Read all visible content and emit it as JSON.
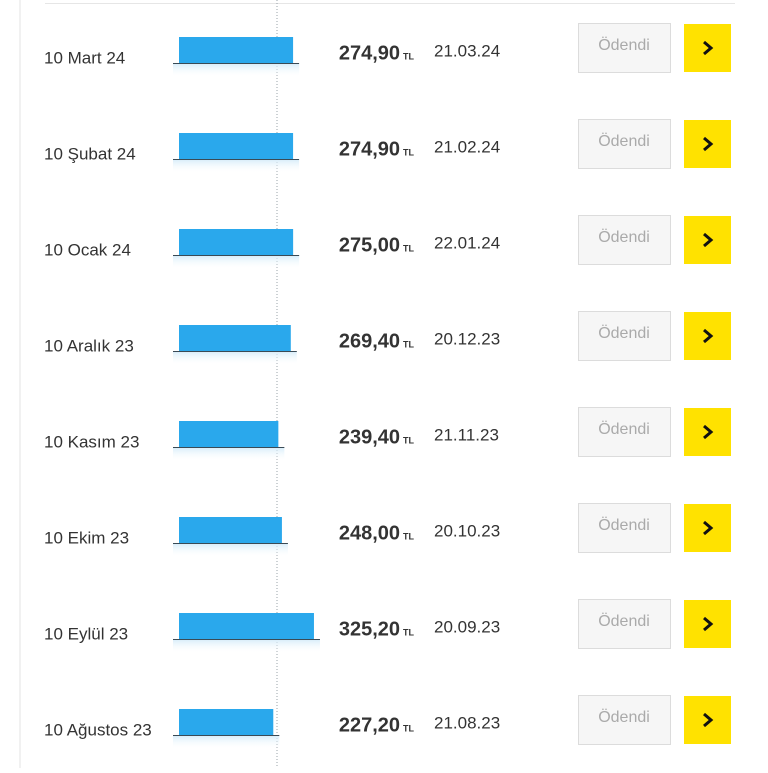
{
  "rows": [
    {
      "label": "10 Mart 24",
      "amount": {
        "value": 274.9,
        "label": "274,90"
      },
      "currency": "TL",
      "date": "21.03.24",
      "status": "Ödendi"
    },
    {
      "label": "10 Şubat 24",
      "amount": {
        "value": 274.9,
        "label": "274,90"
      },
      "currency": "TL",
      "date": "21.02.24",
      "status": "Ödendi"
    },
    {
      "label": "10 Ocak 24",
      "amount": {
        "value": 275.0,
        "label": "275,00"
      },
      "currency": "TL",
      "date": "22.01.24",
      "status": "Ödendi"
    },
    {
      "label": "10 Aralık 23",
      "amount": {
        "value": 269.4,
        "label": "269,40"
      },
      "currency": "TL",
      "date": "20.12.23",
      "status": "Ödendi"
    },
    {
      "label": "10 Kasım 23",
      "amount": {
        "value": 239.4,
        "label": "239,40"
      },
      "currency": "TL",
      "date": "21.11.23",
      "status": "Ödendi"
    },
    {
      "label": "10 Ekim 23",
      "amount": {
        "value": 248.0,
        "label": "248,00"
      },
      "currency": "TL",
      "date": "20.10.23",
      "status": "Ödendi"
    },
    {
      "label": "10 Eylül 23",
      "amount": {
        "value": 325.2,
        "label": "325,20"
      },
      "currency": "TL",
      "date": "20.09.23",
      "status": "Ödendi"
    },
    {
      "label": "10 Ağustos 23",
      "amount": {
        "value": 227.2,
        "label": "227,20"
      },
      "currency": "TL",
      "date": "21.08.23",
      "status": "Ödendi"
    }
  ]
}
